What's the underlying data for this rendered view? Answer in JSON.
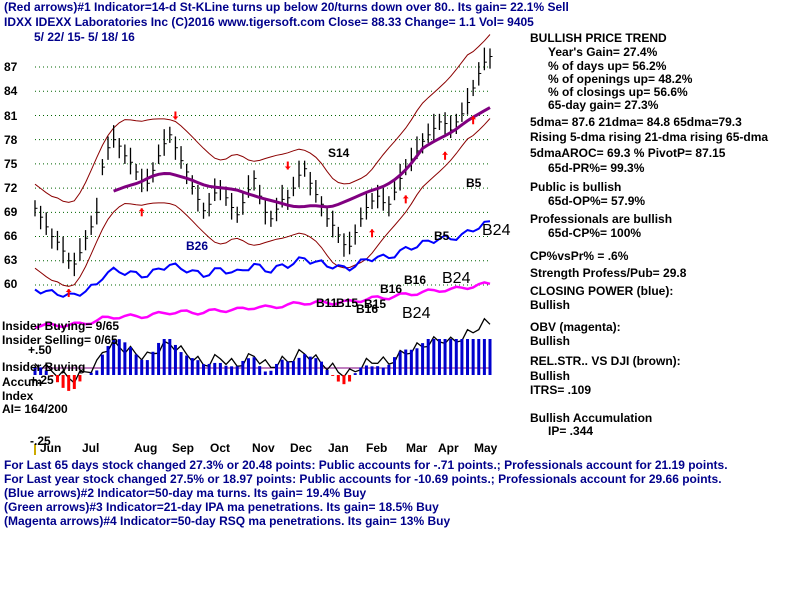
{
  "header": {
    "line1": "(Red arrows)#1 Indicator=14-d St-KLine turns up below 20/turns down over 80.. Its gain= 22.1% Sell",
    "line2": "IDXX  IDEXX Laboratories Inc  (C)2016 www.tigersoft.com    Close=  88.33  Change= 1.1  Vol= 9405",
    "dates": "5/ 22/ 15-  5/ 18/ 16"
  },
  "right_panel": {
    "trend_title": "BULLISH PRICE TREND",
    "years_gain": "Year's Gain= 27.4%",
    "pct_days_up": "% of days up= 56.2%",
    "pct_openings_up": "% of openings up= 48.2%",
    "pct_closings_up": "% of closings up= 56.6%",
    "gain_65": "65-day gain= 27.3%",
    "dma": "5dma= 87.6  21dma= 84.8  65dma=79.3",
    "rising": "Rising 5-dma  rising 21-dma  rising 65-dma",
    "aroc": "5dmaAROC=  69.3 %   PivotP= 87.15",
    "pr": "65d-PR%= 99.3%",
    "public": "Public is bullish",
    "op": "65d-OP%=  57.9%",
    "professionals": "Professionals are bullish",
    "cp": "65d-CP%= 100%",
    "cpvspr": "CP%vsPr% =   .6%",
    "strength": "Strength Profess/Pub= 29.8",
    "closing_power": "CLOSING POWER (blue):",
    "cp_bullish": "Bullish",
    "obv": "OBV (magenta):",
    "obv_bullish": "Bullish",
    "relstr": "REL.STR.. VS DJI (brown):",
    "rs_bullish": "Bullish",
    "itrs": "ITRS=  .109",
    "accum": "Bullish Accumulation",
    "ip": "IP=   .344"
  },
  "left_labels": {
    "insider_buying": "Insider Buying= 9/65",
    "insider_selling": "Insider Selling= 0/65",
    "plus50": "+.50",
    "insider_buying2": "Insider Buying",
    "accum": "Accum",
    "plus25": "+.25",
    "index": "Index",
    "ai": "AI= 164/200",
    "minus25": "-.25"
  },
  "annotations": {
    "s14": "S14",
    "b26": "B26",
    "b5a": "B5",
    "b5b": "B5",
    "b24a": "B24",
    "b24b": "B24",
    "b24c": "B24",
    "b16a": "B16",
    "b16b": "B16",
    "b16c": "B16",
    "b11": "B11",
    "b15a": "B15",
    "b15b": "B15"
  },
  "footer": {
    "line1": "For Last 65 days stock changed  27.3% or  20.48 points:  Public accounts for -.71 points.;  Professionals account for  21.19 points.",
    "line2": "For Last year stock changed  27.5% or  18.97 points:  Public accounts for -10.69 points.;  Professionals account for  29.66 points.",
    "line3": "(Blue arrows)#2 Indicator=50-day ma turns. Its gain= 19.4% Buy",
    "line4": "(Green arrows)#3 Indicator=21-day IPA ma penetrations. Its gain= 18.5% Buy",
    "line5": "(Magenta arrows)#4 Indicator=50-day RSQ ma penetrations. Its gain= 13% Buy"
  },
  "colors": {
    "price": "#000000",
    "bands": "#8b0000",
    "ma65": "#800080",
    "closing_power": "#0000ff",
    "obv": "#ff00ff",
    "rel_str": "#8b0000",
    "accum_pos": "#0000cd",
    "accum_neg": "#ff0000",
    "grid": "#006400"
  },
  "chart_data": {
    "type": "line",
    "title": "IDXX  IDEXX Laboratories Inc",
    "y_ticks": [
      "87",
      "84",
      "81",
      "78",
      "75",
      "72",
      "69",
      "66",
      "63",
      "60"
    ],
    "x_ticks": [
      "Jun",
      "Jul",
      "Aug",
      "Sep",
      "Oct",
      "Nov",
      "Dec",
      "Jan",
      "Feb",
      "Mar",
      "Apr",
      "May"
    ],
    "ylim": [
      57.5,
      90
    ],
    "series": [
      {
        "name": "price",
        "values": [
          69.5,
          68.4,
          67.2,
          66.0,
          65.3,
          64.2,
          63.0,
          62.6,
          64.0,
          65.8,
          67.2,
          69.0,
          74.6,
          77.0,
          78.0,
          77.2,
          76.0,
          75.2,
          74.0,
          73.0,
          72.6,
          74.2,
          76.0,
          77.5,
          78.6,
          77.0,
          75.4,
          74.0,
          72.2,
          70.6,
          69.2,
          70.0,
          71.4,
          72.0,
          70.8,
          69.6,
          68.7,
          70.2,
          71.8,
          73.2,
          71.0,
          69.0,
          68.2,
          69.4,
          70.6,
          70.8,
          72.0,
          73.6,
          74.4,
          72.6,
          71.2,
          70.0,
          68.2,
          67.4,
          66.2,
          65.0,
          64.8,
          66.5,
          68.2,
          69.6,
          70.4,
          71.0,
          70.2,
          70.0,
          71.5,
          73.2,
          74.6,
          75.6,
          76.6,
          77.8,
          78.6,
          79.4,
          80.2,
          80.0,
          79.2,
          80.2,
          81.2,
          82.6,
          84.4,
          86.2,
          87.6,
          88.3
        ]
      }
    ]
  }
}
